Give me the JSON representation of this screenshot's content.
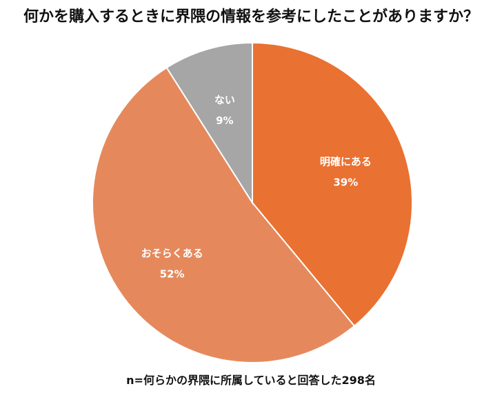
{
  "chart_data": {
    "type": "pie",
    "title": "何かを購入するときに界隈の情報を参考にしたことがありますか？",
    "slices": [
      {
        "label": "明確にある",
        "value": 39,
        "value_label": "39%",
        "color": "#E97132"
      },
      {
        "label": "おそらくある",
        "value": 52,
        "value_label": "52%",
        "color": "#E5895C"
      },
      {
        "label": "ない",
        "value": 9,
        "value_label": "9%",
        "color": "#A6A6A6"
      }
    ],
    "start": "12 o'clock, clockwise",
    "legend": "none (labels on slices)"
  },
  "footnote": "n=何らかの界隈に所属していると回答した298名"
}
